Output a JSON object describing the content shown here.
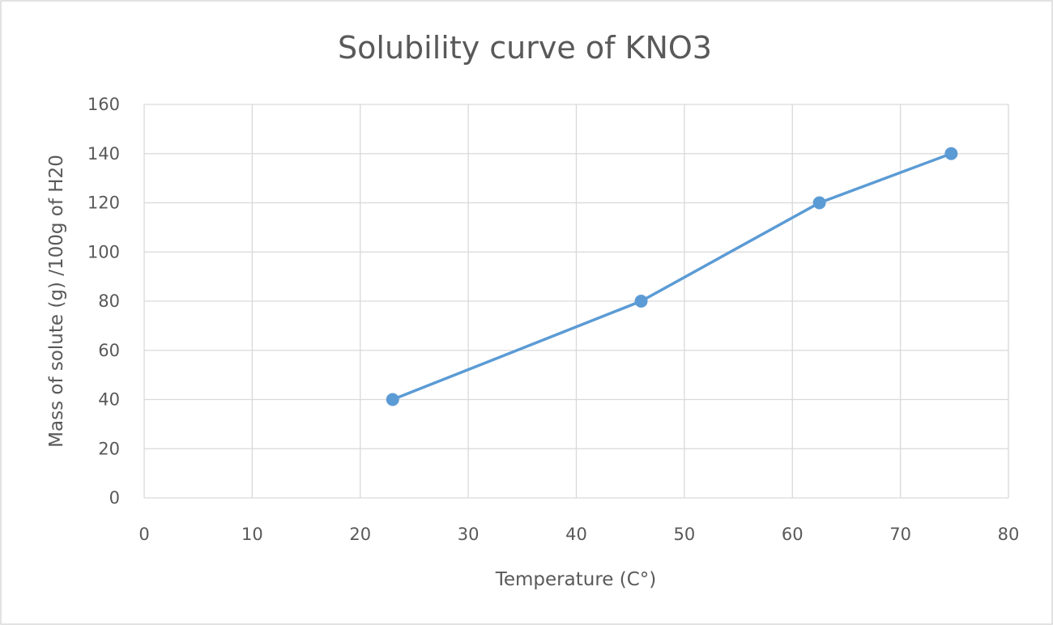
{
  "chart_data": {
    "type": "line",
    "title": "Solubility curve of KNO3",
    "xlabel": "Temperature (C°)",
    "ylabel": "Mass of solute (g) /100g of H20",
    "xlim": [
      0,
      80
    ],
    "ylim": [
      0,
      160
    ],
    "xticks": [
      0,
      10,
      20,
      30,
      40,
      50,
      60,
      70,
      80
    ],
    "yticks": [
      0,
      20,
      40,
      60,
      80,
      100,
      120,
      140,
      160
    ],
    "grid": true,
    "legend": "none",
    "series": [
      {
        "name": "KNO3",
        "color": "#5b9bd5",
        "x": [
          23,
          46,
          62.5,
          74.7
        ],
        "y": [
          40,
          80,
          120,
          140
        ]
      }
    ]
  }
}
